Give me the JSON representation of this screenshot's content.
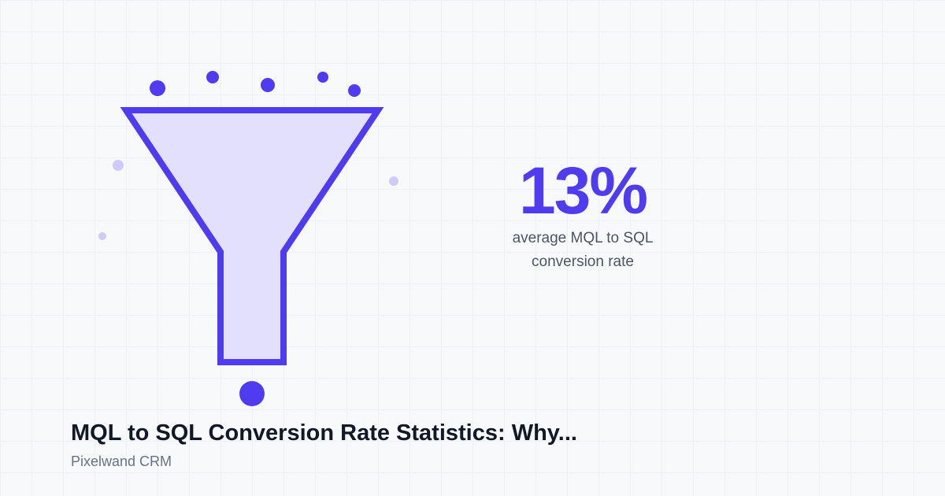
{
  "stat": {
    "value": "13%",
    "caption": "average MQL to SQL conversion rate"
  },
  "title": "MQL to SQL Conversion Rate Statistics: Why...",
  "brand": "Pixelwand CRM",
  "illustration": {
    "icon": "funnel-icon",
    "colors": {
      "accent": "#4f3bf0",
      "funnel_fill": "#e3e0fd",
      "faded_dot": "#cfcaf9"
    }
  }
}
